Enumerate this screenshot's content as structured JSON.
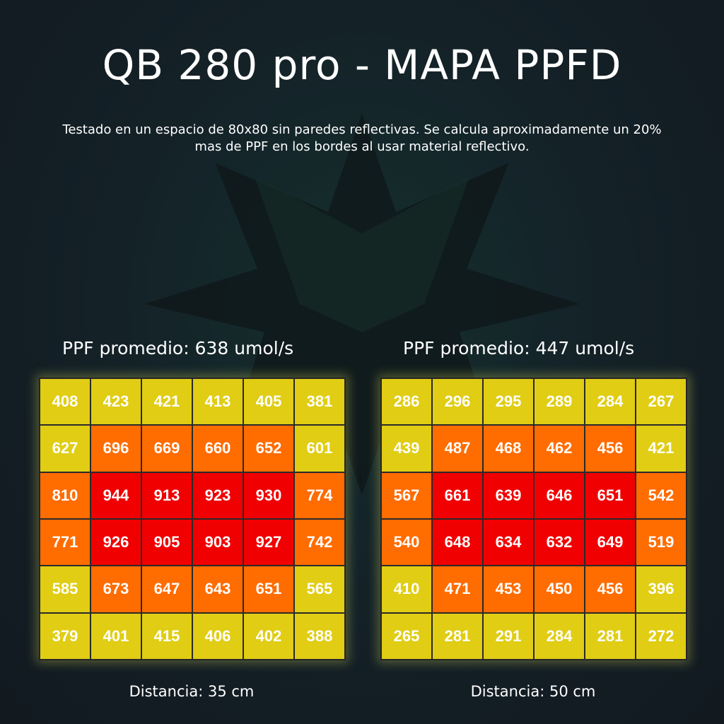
{
  "title": "QB 280 pro - MAPA PPFD",
  "subtitle": "Testado en un espacio de 80x80 sin paredes reflectivas. Se calcula aproximadamente un 20% mas de PPF en los bordes al usar material reflectivo.",
  "colors": {
    "low": "#e0cd14",
    "mid": "#ff6c00",
    "high": "#f00000",
    "background": "#131d24"
  },
  "chart_data": [
    {
      "type": "heatmap",
      "average_label": "PPF promedio: 638 umol/s",
      "distance_label": "Distancia: 35 cm",
      "rows": [
        [
          408,
          423,
          421,
          413,
          405,
          381
        ],
        [
          627,
          696,
          669,
          660,
          652,
          601
        ],
        [
          810,
          944,
          913,
          923,
          930,
          774
        ],
        [
          771,
          926,
          905,
          903,
          927,
          742
        ],
        [
          585,
          673,
          647,
          643,
          651,
          565
        ],
        [
          379,
          401,
          415,
          406,
          402,
          388
        ]
      ],
      "levels": [
        [
          "low",
          "low",
          "low",
          "low",
          "low",
          "low"
        ],
        [
          "low",
          "mid",
          "mid",
          "mid",
          "mid",
          "low"
        ],
        [
          "mid",
          "high",
          "high",
          "high",
          "high",
          "mid"
        ],
        [
          "mid",
          "high",
          "high",
          "high",
          "high",
          "mid"
        ],
        [
          "low",
          "mid",
          "mid",
          "mid",
          "mid",
          "low"
        ],
        [
          "low",
          "low",
          "low",
          "low",
          "low",
          "low"
        ]
      ]
    },
    {
      "type": "heatmap",
      "average_label": "PPF promedio: 447 umol/s",
      "distance_label": "Distancia: 50 cm",
      "rows": [
        [
          286,
          296,
          295,
          289,
          284,
          267
        ],
        [
          439,
          487,
          468,
          462,
          456,
          421
        ],
        [
          567,
          661,
          639,
          646,
          651,
          542
        ],
        [
          540,
          648,
          634,
          632,
          649,
          519
        ],
        [
          410,
          471,
          453,
          450,
          456,
          396
        ],
        [
          265,
          281,
          291,
          284,
          281,
          272
        ]
      ],
      "levels": [
        [
          "low",
          "low",
          "low",
          "low",
          "low",
          "low"
        ],
        [
          "low",
          "mid",
          "mid",
          "mid",
          "mid",
          "low"
        ],
        [
          "mid",
          "high",
          "high",
          "high",
          "high",
          "mid"
        ],
        [
          "mid",
          "high",
          "high",
          "high",
          "high",
          "mid"
        ],
        [
          "low",
          "mid",
          "mid",
          "mid",
          "mid",
          "low"
        ],
        [
          "low",
          "low",
          "low",
          "low",
          "low",
          "low"
        ]
      ]
    }
  ]
}
